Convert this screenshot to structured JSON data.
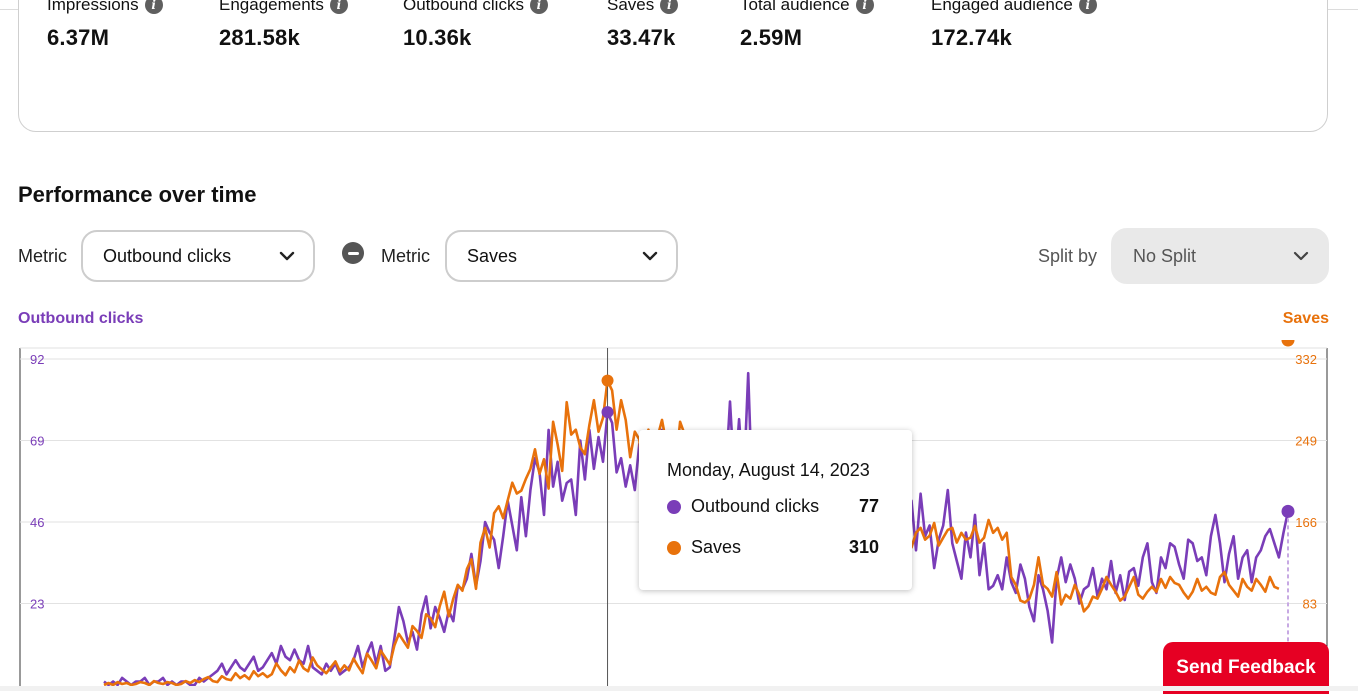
{
  "stats": [
    {
      "label": "Impressions",
      "value": "6.37M"
    },
    {
      "label": "Engagements",
      "value": "281.58k"
    },
    {
      "label": "Outbound clicks",
      "value": "10.36k"
    },
    {
      "label": "Saves",
      "value": "33.47k"
    },
    {
      "label": "Total audience",
      "value": "2.59M"
    },
    {
      "label": "Engaged audience",
      "value": "172.74k"
    }
  ],
  "section_title": "Performance over time",
  "controls": {
    "metric_label": "Metric",
    "metric1_value": "Outbound clicks",
    "metric2_value": "Saves",
    "split_label": "Split by",
    "split_value": "No Split"
  },
  "tooltip": {
    "date": "Monday, August 14, 2023",
    "rows": [
      {
        "name": "Outbound clicks",
        "value": "77"
      },
      {
        "name": "Saves",
        "value": "310"
      }
    ]
  },
  "feedback_label": "Send Feedback",
  "colors": {
    "outbound": "#7a3db8",
    "saves": "#e8720c",
    "feedback": "#e60023"
  },
  "chart_data": {
    "type": "line",
    "left_axis_label": "Outbound clicks",
    "right_axis_label": "Saves",
    "left_ticks": [
      "92",
      "69",
      "46",
      "23"
    ],
    "right_ticks": [
      "332",
      "249",
      "166",
      "83"
    ],
    "left_range": [
      0,
      92
    ],
    "right_range": [
      0,
      332
    ],
    "grid": true,
    "highlight_index": 111,
    "series": [
      {
        "name": "Outbound clicks",
        "axis": "left",
        "values": [
          1,
          0,
          1,
          0,
          2,
          1,
          0,
          1,
          1,
          2,
          0,
          1,
          1,
          2,
          0,
          1,
          0,
          1,
          1,
          0,
          0,
          2,
          1,
          2,
          3,
          4,
          6,
          3,
          5,
          7,
          5,
          4,
          6,
          8,
          4,
          5,
          7,
          9,
          6,
          11,
          8,
          7,
          10,
          7,
          6,
          11,
          5,
          4,
          3,
          6,
          4,
          6,
          3,
          4,
          5,
          7,
          11,
          5,
          9,
          12,
          6,
          11,
          4,
          5,
          13,
          22,
          18,
          12,
          15,
          10,
          20,
          25,
          16,
          22,
          19,
          15,
          21,
          18,
          28,
          27,
          30,
          37,
          28,
          35,
          46,
          43,
          41,
          33,
          42,
          52,
          45,
          38,
          53,
          42,
          55,
          64,
          60,
          48,
          72,
          56,
          63,
          52,
          57,
          58,
          48,
          69,
          58,
          72,
          61,
          70,
          63,
          77,
          74,
          60,
          64,
          56,
          62,
          55,
          68,
          63,
          70,
          62,
          57,
          72,
          65,
          60,
          68,
          71,
          58,
          64,
          66,
          63,
          70,
          59,
          61,
          66,
          71,
          58,
          80,
          57,
          75,
          56,
          88,
          50,
          66,
          55,
          67,
          53,
          52,
          46,
          44,
          58,
          48,
          42,
          36,
          41,
          59,
          57,
          50,
          32,
          41,
          48,
          44,
          53,
          37,
          62,
          38,
          49,
          42,
          44,
          60,
          52,
          39,
          45,
          56,
          36,
          40,
          46,
          52,
          38,
          54,
          42,
          45,
          33,
          41,
          45,
          55,
          40,
          35,
          30,
          43,
          36,
          48,
          31,
          40,
          27,
          28,
          31,
          27,
          36,
          29,
          26,
          34,
          30,
          22,
          18,
          31,
          27,
          21,
          12,
          30,
          36,
          29,
          34,
          30,
          23,
          27,
          28,
          33,
          25,
          30,
          27,
          35,
          26,
          31,
          24,
          32,
          33,
          28,
          36,
          40,
          29,
          26,
          36,
          33,
          40,
          39,
          34,
          30,
          41,
          40,
          35,
          36,
          31,
          42,
          48,
          40,
          29,
          37,
          42,
          30,
          36,
          38,
          29,
          36,
          38,
          42,
          44,
          40,
          36,
          43,
          49
        ]
      },
      {
        "name": "Saves",
        "axis": "right",
        "values": [
          0,
          2,
          0,
          3,
          1,
          2,
          0,
          1,
          3,
          2,
          0,
          4,
          2,
          1,
          3,
          2,
          0,
          1,
          4,
          2,
          5,
          3,
          6,
          8,
          4,
          3,
          9,
          6,
          5,
          12,
          7,
          10,
          6,
          14,
          9,
          12,
          8,
          11,
          22,
          15,
          10,
          18,
          13,
          25,
          17,
          14,
          28,
          20,
          16,
          12,
          18,
          24,
          14,
          20,
          15,
          27,
          19,
          12,
          32,
          25,
          17,
          35,
          28,
          21,
          40,
          52,
          45,
          38,
          60,
          55,
          48,
          72,
          68,
          59,
          80,
          95,
          70,
          88,
          102,
          96,
          118,
          128,
          98,
          145,
          160,
          140,
          175,
          182,
          170,
          188,
          206,
          195,
          198,
          210,
          220,
          240,
          215,
          230,
          200,
          268,
          245,
          218,
          288,
          255,
          260,
          242,
          235,
          265,
          290,
          258,
          272,
          310,
          300,
          260,
          290,
          270,
          232,
          258,
          250,
          205,
          260,
          240,
          252,
          270,
          245,
          230,
          222,
          268,
          255,
          240,
          225,
          212,
          200,
          190,
          198,
          175,
          188,
          170,
          165,
          162,
          150,
          165,
          168,
          155,
          166,
          152,
          145,
          160,
          170,
          158,
          162,
          150,
          168,
          158,
          175,
          162,
          148,
          155,
          170,
          150,
          162,
          140,
          155,
          148,
          165,
          152,
          142,
          158,
          170,
          148,
          162,
          155,
          150,
          160,
          145,
          158,
          165,
          150,
          140,
          155,
          160,
          148,
          152,
          165,
          142,
          150,
          158,
          160,
          145,
          155,
          148,
          150,
          162,
          145,
          150,
          168,
          155,
          160,
          148,
          155,
          110,
          102,
          86,
          84,
          88,
          102,
          130,
          102,
          98,
          90,
          115,
          82,
          92,
          88,
          102,
          92,
          75,
          80,
          90,
          88,
          98,
          110,
          102,
          95,
          86,
          90,
          100,
          110,
          92,
          88,
          95,
          100,
          95,
          108,
          99,
          110,
          104,
          102,
          94,
          88,
          95,
          108,
          96,
          100,
          94,
          92,
          110,
          115,
          102,
          96,
          90,
          108,
          100,
          96,
          108,
          102,
          95,
          110,
          100,
          98
        ]
      }
    ]
  }
}
